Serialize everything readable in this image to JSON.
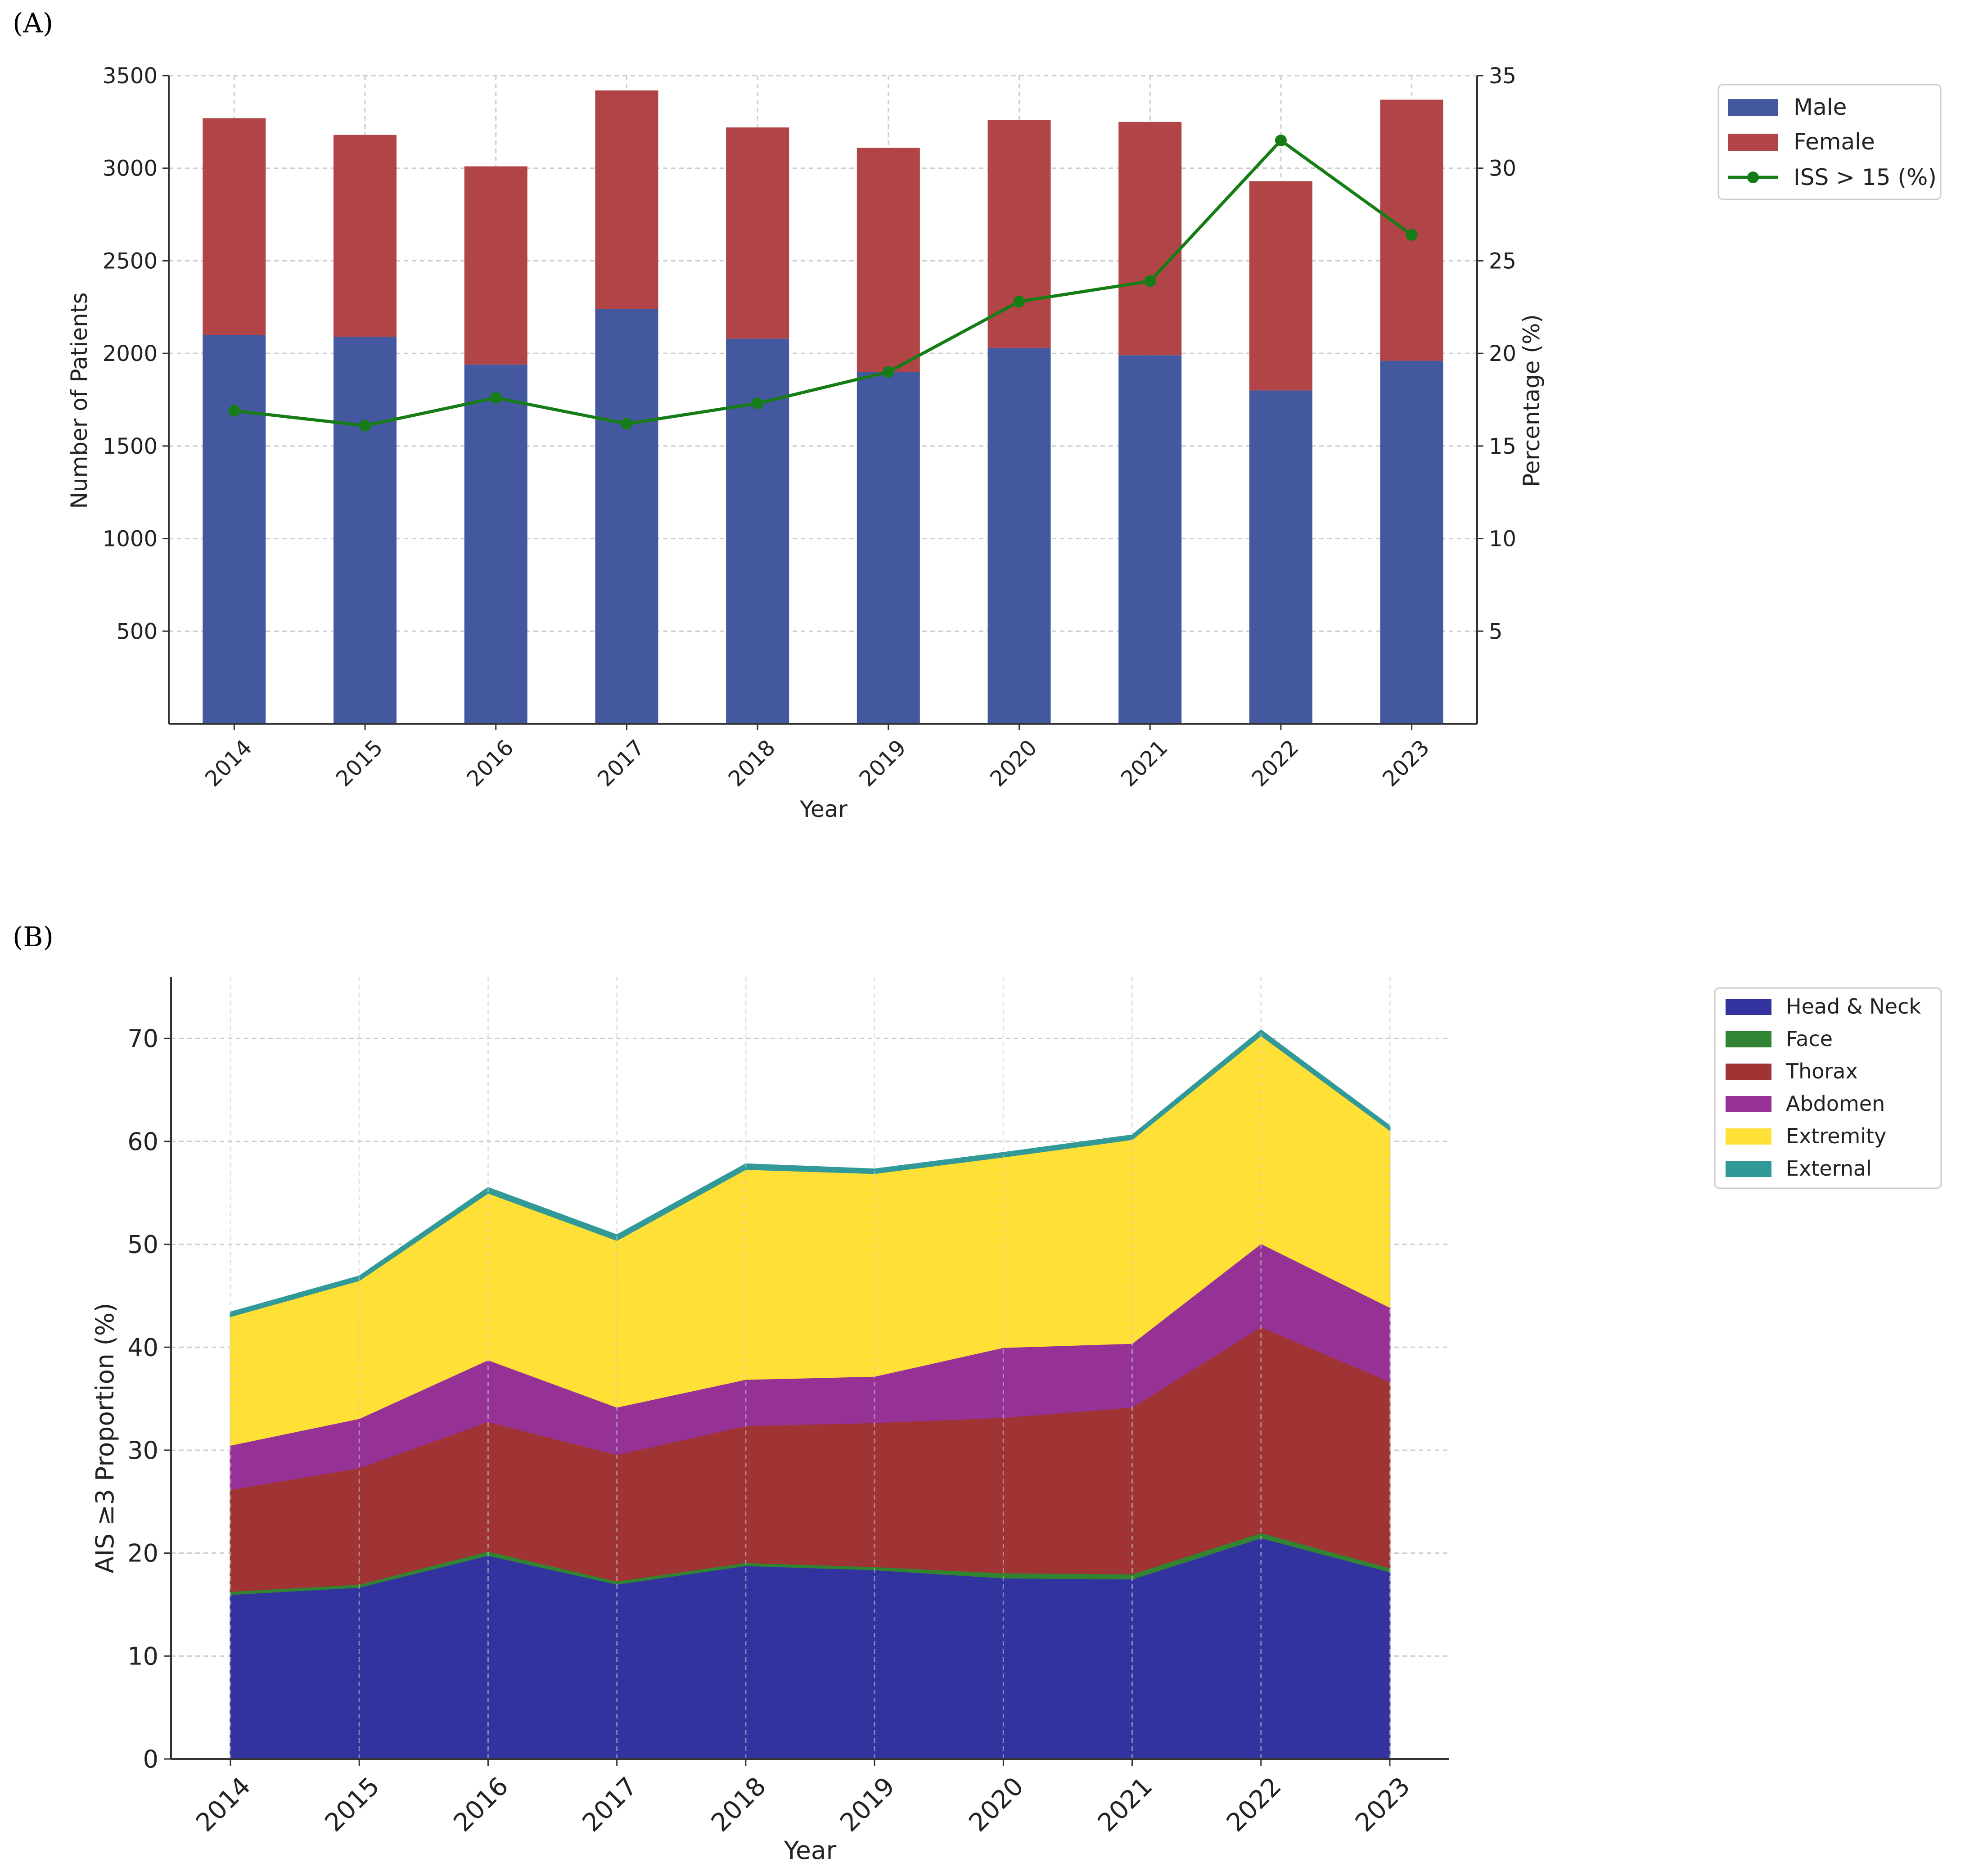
{
  "colors": {
    "male": "#4458A0",
    "female": "#B04446",
    "iss": "#167D16",
    "head_neck": "#3333A0",
    "face": "#318431",
    "thorax": "#A03333",
    "abdomen": "#963296",
    "extremity": "#FFE036",
    "external": "#329999",
    "axis": "#333333",
    "grid": "#CCCCCC"
  },
  "chart_data": [
    {
      "panel_label": "(A)",
      "type": "bar",
      "stacked": true,
      "categories": [
        "2014",
        "2015",
        "2016",
        "2017",
        "2018",
        "2019",
        "2020",
        "2021",
        "2022",
        "2023"
      ],
      "series": [
        {
          "name": "Male",
          "values": [
            2100,
            2090,
            1940,
            2240,
            2080,
            1900,
            2030,
            1990,
            1800,
            1960
          ]
        },
        {
          "name": "Female",
          "values": [
            1170,
            1090,
            1070,
            1180,
            1140,
            1210,
            1230,
            1260,
            1130,
            1410
          ]
        }
      ],
      "line_series": {
        "name": "ISS > 15 (%)",
        "values": [
          16.9,
          16.1,
          17.6,
          16.2,
          17.3,
          19.0,
          22.8,
          23.9,
          31.5,
          26.4
        ],
        "axis": "right"
      },
      "xlabel": "Year",
      "ylabel": "Number of Patients",
      "y2label": "Percentage (%)",
      "ylim": [
        0,
        3500
      ],
      "y2lim": [
        0,
        35
      ],
      "yticks": [
        "500",
        "1000",
        "1500",
        "2000",
        "2500",
        "3000",
        "3500"
      ],
      "y2ticks": [
        "5",
        "10",
        "15",
        "20",
        "25",
        "30",
        "35"
      ],
      "legend": [
        "Male",
        "Female",
        "ISS > 15 (%)"
      ],
      "legend_position": "outside-right-top",
      "grid": true
    },
    {
      "panel_label": "(B)",
      "type": "area",
      "stacked": true,
      "x": [
        "2014",
        "2015",
        "2016",
        "2017",
        "2018",
        "2019",
        "2020",
        "2021",
        "2022",
        "2023"
      ],
      "series": [
        {
          "name": "Head & Neck",
          "values": [
            16.0,
            16.7,
            19.8,
            17.0,
            18.8,
            18.4,
            17.6,
            17.5,
            21.5,
            18.2
          ]
        },
        {
          "name": "Face",
          "values": [
            0.3,
            0.3,
            0.4,
            0.3,
            0.3,
            0.3,
            0.5,
            0.5,
            0.5,
            0.4
          ]
        },
        {
          "name": "Thorax",
          "values": [
            9.9,
            11.3,
            12.6,
            12.3,
            13.3,
            14.0,
            15.1,
            16.2,
            20.0,
            18.1
          ]
        },
        {
          "name": "Abdomen",
          "values": [
            4.3,
            4.8,
            6.0,
            4.6,
            4.5,
            4.5,
            6.8,
            6.2,
            8.1,
            7.2
          ]
        },
        {
          "name": "Extremity",
          "values": [
            12.5,
            13.4,
            16.2,
            16.2,
            20.4,
            19.7,
            18.5,
            19.8,
            20.2,
            17.2
          ]
        },
        {
          "name": "External",
          "values": [
            0.4,
            0.4,
            0.5,
            0.5,
            0.5,
            0.4,
            0.4,
            0.4,
            0.5,
            0.4
          ]
        }
      ],
      "xlabel": "Year",
      "ylabel": "AIS ≥3 Proportion (%)",
      "ylim": [
        0,
        76
      ],
      "yticks": [
        "0",
        "10",
        "20",
        "30",
        "40",
        "50",
        "60",
        "70"
      ],
      "legend": [
        "Head & Neck",
        "Face",
        "Thorax",
        "Abdomen",
        "Extremity",
        "External"
      ],
      "legend_position": "outside-right-top",
      "grid": true
    }
  ]
}
